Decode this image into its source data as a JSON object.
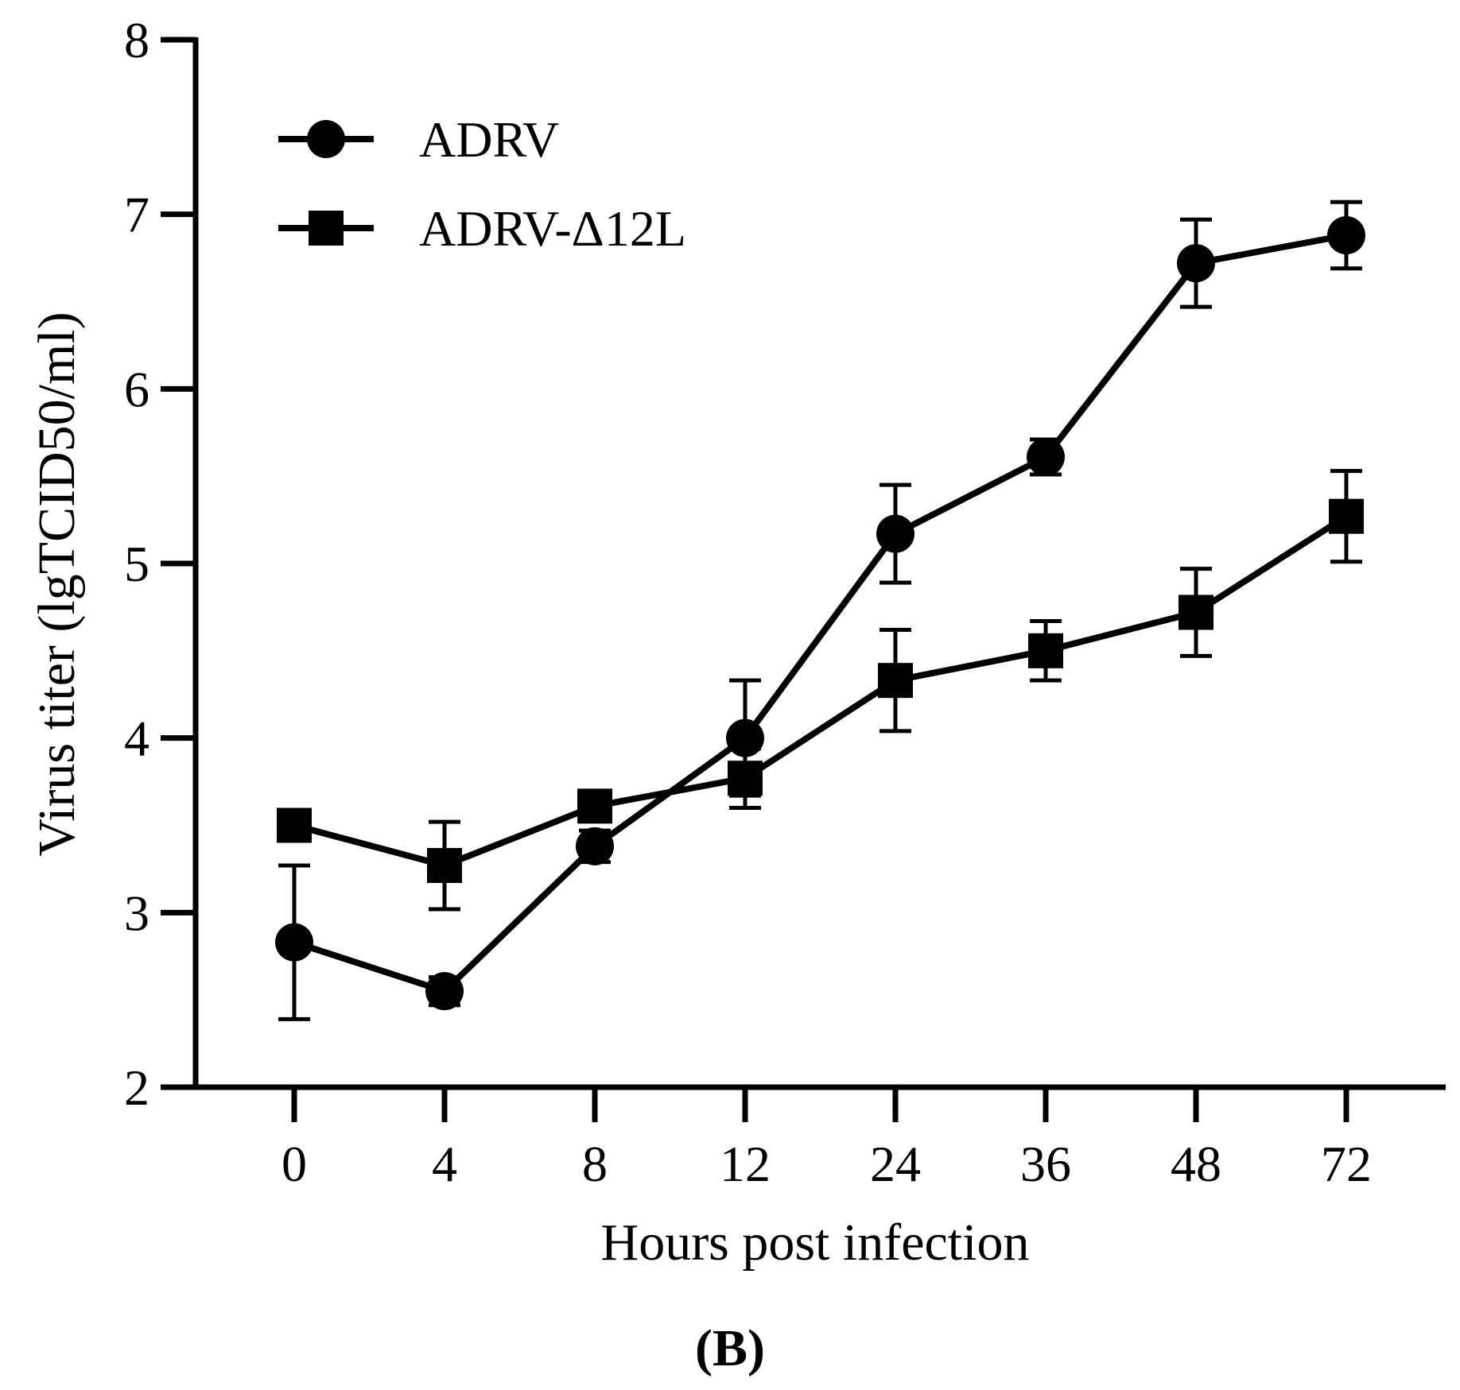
{
  "chart_data": {
    "type": "line",
    "title": "",
    "xlabel": "Hours post infection",
    "ylabel": "Virus titer (lgTCID50/ml)",
    "panel_label": "(B)",
    "x_scale": "categorical",
    "categories": [
      "0",
      "4",
      "8",
      "12",
      "24",
      "36",
      "48",
      "72"
    ],
    "ylim": [
      2,
      8
    ],
    "yticks": [
      "2",
      "3",
      "4",
      "5",
      "6",
      "7",
      "8"
    ],
    "grid": false,
    "legend_position": "top-left",
    "series": [
      {
        "name": "ADRV",
        "marker": "circle",
        "values": [
          2.83,
          2.55,
          3.38,
          4.0,
          5.17,
          5.61,
          6.72,
          6.88
        ],
        "error": [
          0.44,
          0.08,
          0.09,
          0.33,
          0.28,
          0.1,
          0.25,
          0.19
        ]
      },
      {
        "name": "ADRV-Δ12L",
        "marker": "square",
        "values": [
          3.5,
          3.27,
          3.61,
          3.77,
          4.33,
          4.5,
          4.72,
          5.27
        ],
        "error": [
          0.0,
          0.25,
          0.0,
          0.17,
          0.29,
          0.17,
          0.25,
          0.26
        ]
      }
    ]
  }
}
